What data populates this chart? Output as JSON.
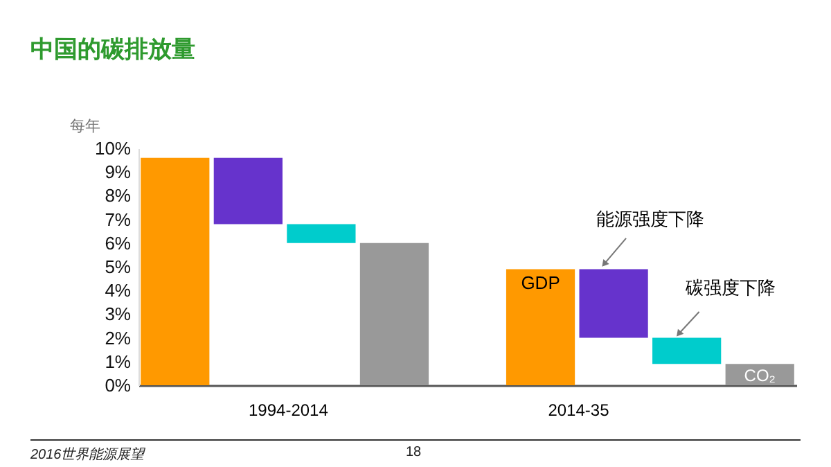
{
  "chart_data": {
    "type": "bar",
    "title": "中国的碳排放量",
    "ylabel": "每年",
    "categories": [
      null,
      null,
      null,
      null,
      null,
      null,
      null,
      null,
      null
    ],
    "values": [
      9.6,
      2.8,
      0.8,
      6.0,
      null,
      4.9,
      2.9,
      1.1,
      0.9
    ],
    "base": [
      0,
      6.8,
      6.0,
      0,
      null,
      0,
      2.0,
      0.9,
      0
    ],
    "colors": [
      "#ff9900",
      "#6633cc",
      "#00cccc",
      "#999999",
      null,
      "#ff9900",
      "#6633cc",
      "#00cccc",
      "#999999"
    ],
    "ylim": [
      0,
      10
    ],
    "yticks": [
      {
        "value": 0,
        "label": "0%"
      },
      {
        "value": 1,
        "label": "1%"
      },
      {
        "value": 2,
        "label": "2%"
      },
      {
        "value": 3,
        "label": "3%"
      },
      {
        "value": 4,
        "label": "4%"
      },
      {
        "value": 5,
        "label": "5%"
      },
      {
        "value": 6,
        "label": "6%"
      },
      {
        "value": 7,
        "label": "7%"
      },
      {
        "value": 8,
        "label": "8%"
      },
      {
        "value": 9,
        "label": "9%"
      },
      {
        "value": 10,
        "label": "10%"
      }
    ],
    "annotations": [
      "GDP",
      "CO₂",
      "1994-2014",
      "2014-35",
      "能源强度下降",
      "碳强度下降",
      "2016世界能源展望",
      "18"
    ]
  }
}
